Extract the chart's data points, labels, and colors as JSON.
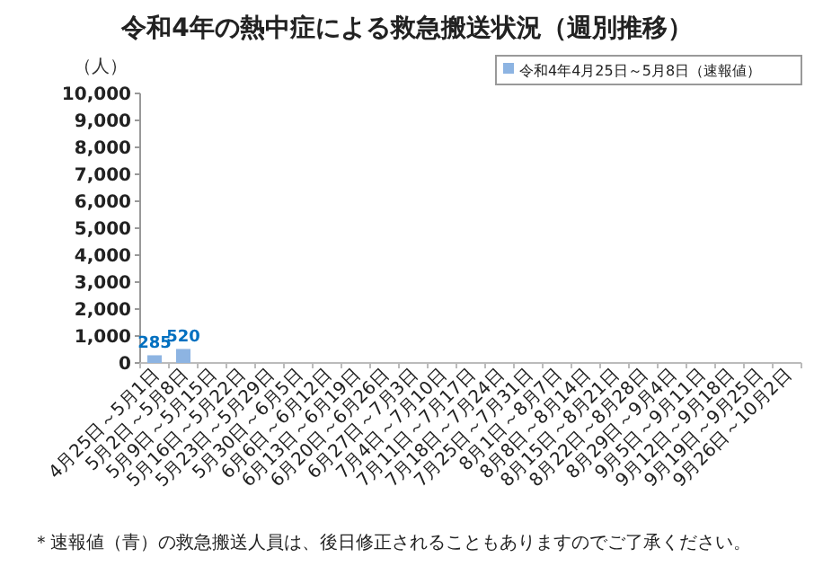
{
  "chart_data": {
    "type": "bar",
    "title": "令和4年の熱中症による救急搬送状況（週別推移）",
    "ylabel": "（人）",
    "categories": [
      "4月25日～5月1日",
      "5月2日～5月8日",
      "5月9日～5月15日",
      "5月16日～5月22日",
      "5月23日～5月29日",
      "5月30日～6月5日",
      "6月6日～6月12日",
      "6月13日～6月19日",
      "6月20日～6月26日",
      "6月27日～7月3日",
      "7月4日～7月10日",
      "7月11日～7月17日",
      "7月18日～7月24日",
      "7月25日～7月31日",
      "8月1日～8月7日",
      "8月8日～8月14日",
      "8月15日～8月21日",
      "8月22日～8月28日",
      "8月29日～9月4日",
      "9月5日～9月11日",
      "9月12日～9月18日",
      "9月19日～9月25日",
      "9月26日～10月2日"
    ],
    "series": [
      {
        "name": "令和4年4月25日～5月8日（速報値）",
        "color": "#8db4e2",
        "values": [
          285,
          520,
          null,
          null,
          null,
          null,
          null,
          null,
          null,
          null,
          null,
          null,
          null,
          null,
          null,
          null,
          null,
          null,
          null,
          null,
          null,
          null,
          null
        ]
      }
    ],
    "data_labels": true,
    "legend": "top right",
    "ylim": [
      0,
      10000
    ],
    "yticks": [
      {
        "value": 0,
        "label": "0"
      },
      {
        "value": 1000,
        "label": "1,000"
      },
      {
        "value": 2000,
        "label": "2,000"
      },
      {
        "value": 3000,
        "label": "3,000"
      },
      {
        "value": 4000,
        "label": "4,000"
      },
      {
        "value": 5000,
        "label": "5,000"
      },
      {
        "value": 6000,
        "label": "6,000"
      },
      {
        "value": 7000,
        "label": "7,000"
      },
      {
        "value": 8000,
        "label": "8,000"
      },
      {
        "value": 9000,
        "label": "9,000"
      },
      {
        "value": 10000,
        "label": "10,000"
      }
    ],
    "annotations": [
      "＊速報値（青）の救急搬送人員は、後日修正されることもありますのでご了承ください。"
    ]
  }
}
